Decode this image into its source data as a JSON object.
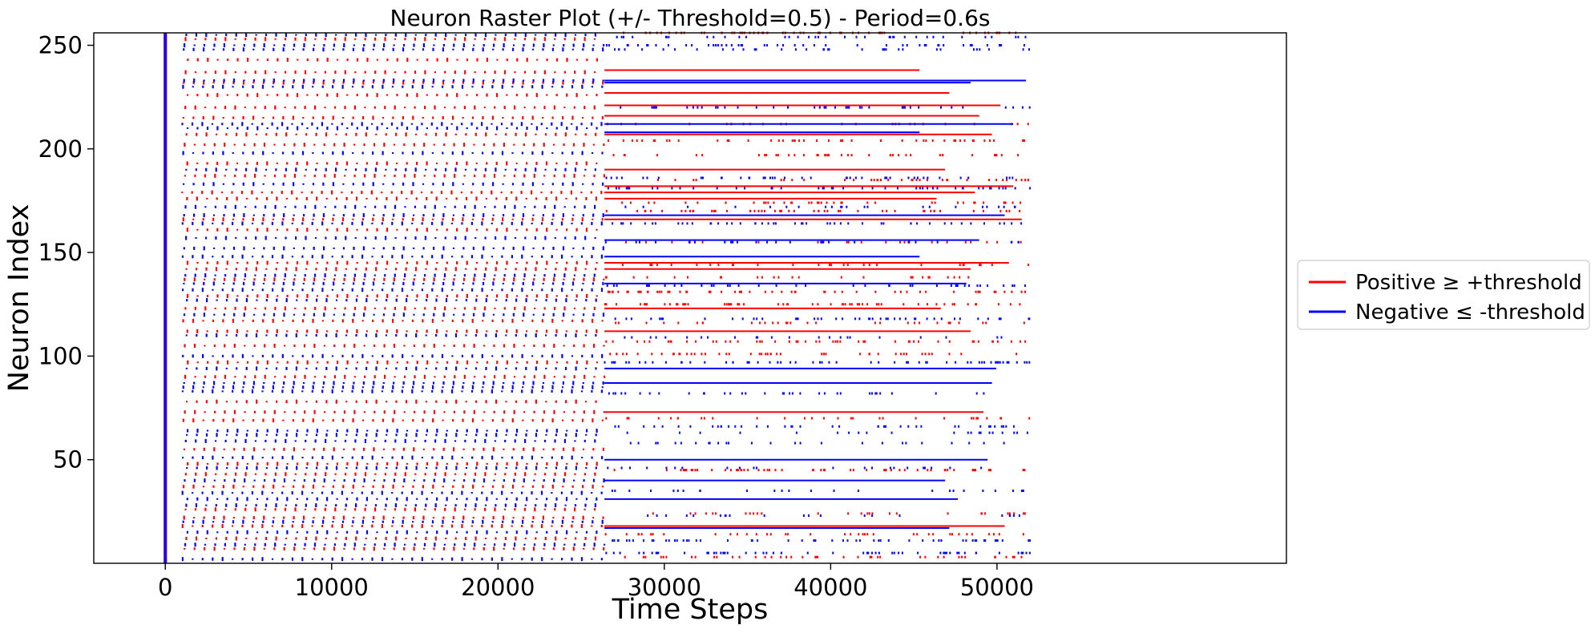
{
  "chart_data": {
    "type": "scatter",
    "title": "Neuron Raster Plot (+/- Threshold=0.5) - Period=0.6s",
    "xlabel": "Time Steps",
    "ylabel": "Neuron Index",
    "xlim": [
      -4300,
      67400
    ],
    "ylim": [
      0,
      256
    ],
    "xticks": [
      0,
      10000,
      20000,
      30000,
      40000,
      50000
    ],
    "xtick_labels": [
      "0",
      "10000",
      "20000",
      "30000",
      "40000",
      "50000"
    ],
    "yticks": [
      50,
      100,
      150,
      200,
      250
    ],
    "ytick_labels": [
      "50",
      "100",
      "150",
      "200",
      "250"
    ],
    "grid": false,
    "legend_position": "outside-right",
    "time_range": [
      0,
      52000
    ],
    "phase_boundary": 26400,
    "period_steps": 600,
    "series": [
      {
        "name": "Positive ≥ +threshold",
        "color": "#ff0000",
        "periodic_neurons": [
          7,
          12,
          18,
          22,
          26,
          37,
          43,
          48,
          55,
          69,
          73,
          78,
          90,
          97,
          105,
          112,
          117,
          123,
          129,
          137,
          142,
          145,
          161,
          166,
          176,
          179,
          187,
          193,
          202,
          207,
          215,
          220,
          226,
          232,
          237,
          243,
          253
        ],
        "continuous_neurons": [
          18,
          73,
          112,
          123,
          142,
          145,
          166,
          176,
          179,
          182,
          190,
          207,
          216,
          221,
          227,
          238
        ],
        "sparse_neurons": [
          3,
          14,
          24,
          45,
          70,
          101,
          107,
          116,
          125,
          131,
          138,
          144,
          155,
          170,
          174,
          185,
          197,
          204,
          212,
          256
        ]
      },
      {
        "name": "Negative ≤ -threshold",
        "color": "#0000ff",
        "periodic_neurons": [
          2,
          9,
          15,
          20,
          28,
          31,
          34,
          40,
          46,
          51,
          59,
          62,
          64,
          83,
          85,
          87,
          94,
          100,
          110,
          120,
          127,
          132,
          135,
          139,
          148,
          152,
          157,
          164,
          168,
          172,
          183,
          190,
          198,
          210,
          212,
          230,
          233,
          248,
          250,
          255
        ],
        "continuous_neurons": [
          17,
          31,
          40,
          50,
          87,
          94,
          135,
          148,
          156,
          168,
          208,
          212,
          232,
          233
        ],
        "sparse_neurons": [
          5,
          11,
          23,
          35,
          46,
          58,
          63,
          66,
          82,
          97,
          109,
          118,
          134,
          155,
          164,
          172,
          181,
          186,
          220,
          248,
          250,
          254
        ]
      }
    ]
  }
}
